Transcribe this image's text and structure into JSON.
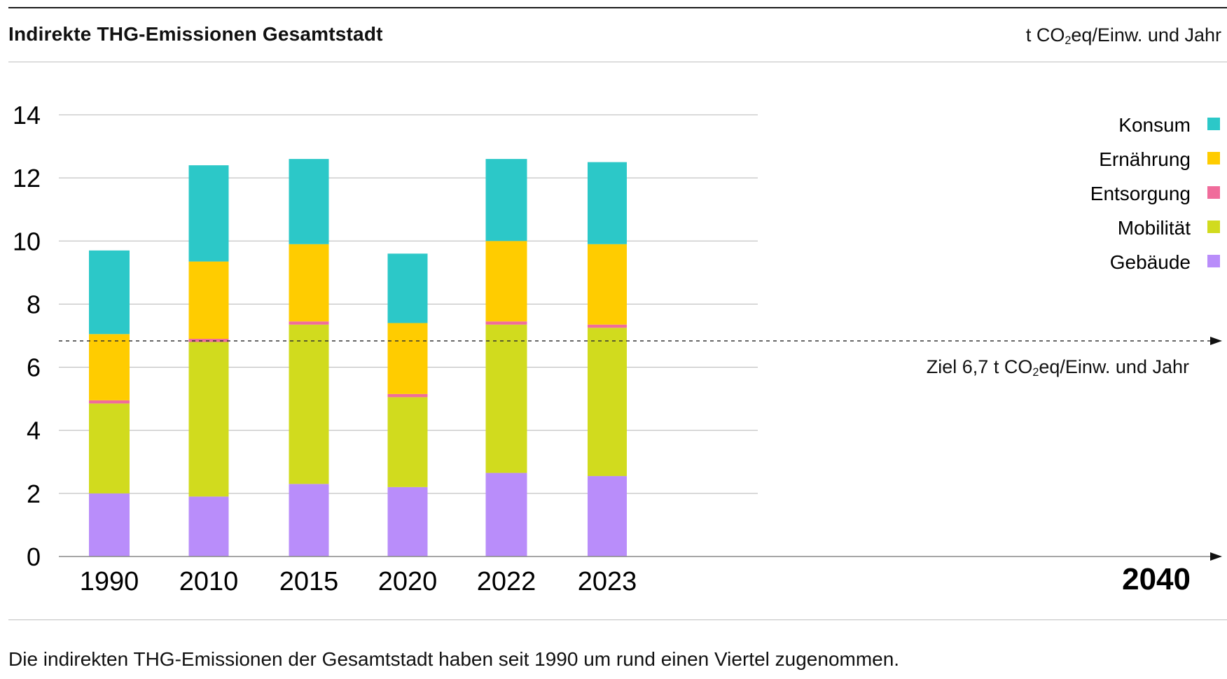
{
  "header": {
    "title": "Indirekte THG-Emissionen Gesamtstadt",
    "unit_prefix": "t CO",
    "unit_sub": "2",
    "unit_suffix": "eq/Einw. und Jahr"
  },
  "target": {
    "value": 6.7,
    "label_prefix": "Ziel 6,7 t CO",
    "label_sub": "2",
    "label_suffix": "eq/Einw. und Jahr",
    "year": "2040"
  },
  "caption": "Die indirekten THG-Emissionen der Gesamtstadt haben seit 1990 um rund einen Viertel zugenommen.",
  "colors": {
    "Konsum": "#2cc8c8",
    "Ernährung": "#ffcc00",
    "Entsorgung": "#f06c9b",
    "Mobilität": "#d1db1e",
    "Gebäude": "#b98dfa"
  },
  "chart_data": {
    "type": "bar",
    "stacked": true,
    "title": "Indirekte THG-Emissionen Gesamtstadt",
    "ylabel": "t CO2eq/Einw. und Jahr",
    "ylim": [
      0,
      14
    ],
    "yticks": [
      0,
      2,
      4,
      6,
      8,
      10,
      12,
      14
    ],
    "categories": [
      "1990",
      "2010",
      "2015",
      "2020",
      "2022",
      "2023"
    ],
    "series": [
      {
        "name": "Gebäude",
        "values": [
          2.0,
          1.9,
          2.3,
          2.2,
          2.65,
          2.55
        ]
      },
      {
        "name": "Mobilität",
        "values": [
          2.85,
          4.9,
          5.05,
          2.85,
          4.7,
          4.7
        ]
      },
      {
        "name": "Entsorgung",
        "values": [
          0.1,
          0.1,
          0.1,
          0.1,
          0.1,
          0.1
        ]
      },
      {
        "name": "Ernährung",
        "values": [
          2.1,
          2.45,
          2.45,
          2.25,
          2.55,
          2.55
        ]
      },
      {
        "name": "Konsum",
        "values": [
          2.65,
          3.05,
          2.7,
          2.2,
          2.6,
          2.6
        ]
      }
    ],
    "legend": [
      "Konsum",
      "Ernährung",
      "Entsorgung",
      "Mobilität",
      "Gebäude"
    ],
    "legend_position": "top-right"
  }
}
